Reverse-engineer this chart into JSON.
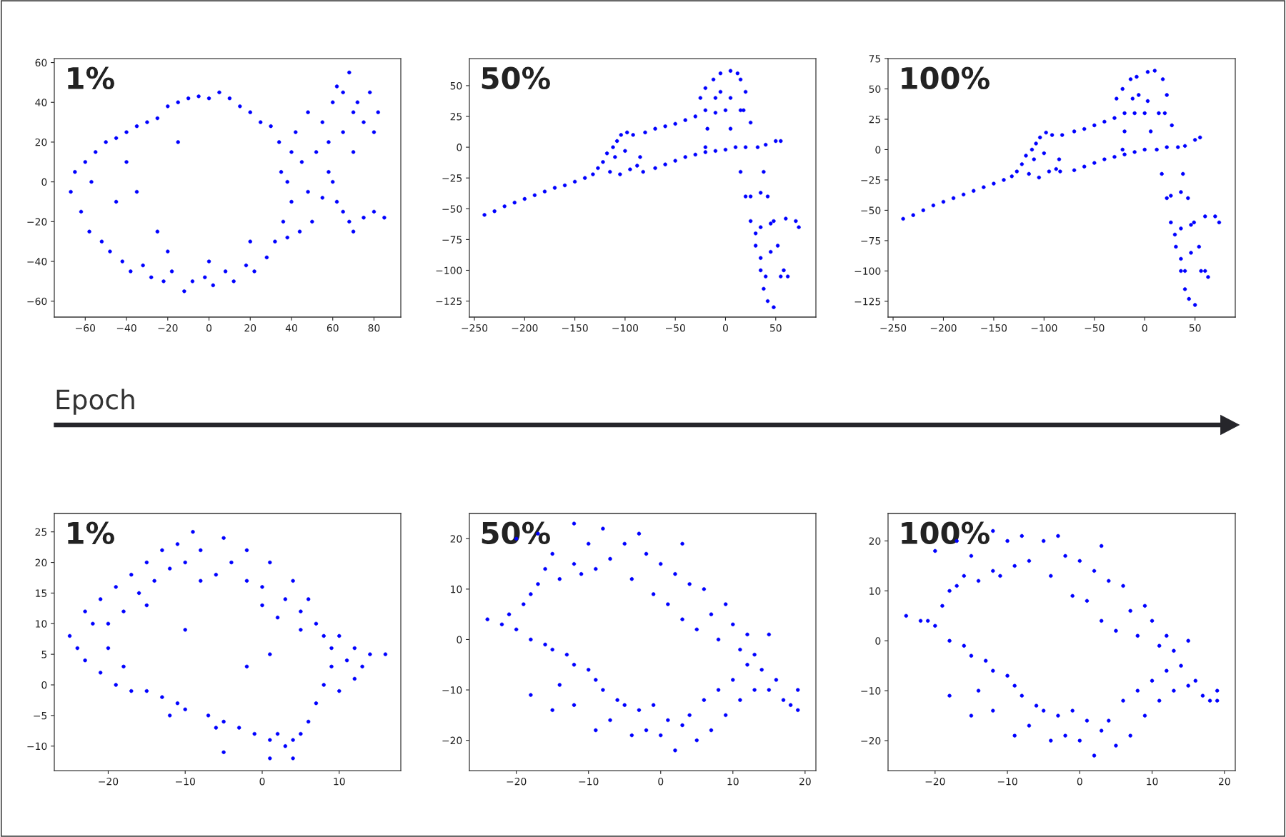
{
  "chart_data": [
    {
      "type": "scatter",
      "title": "1%",
      "annotations": [
        "Epoch"
      ],
      "marker": "circle",
      "grid": false,
      "xlim": [
        -75,
        93
      ],
      "ylim": [
        -68,
        62
      ],
      "xticks": [
        -60,
        -40,
        -20,
        0,
        20,
        40,
        60,
        80
      ],
      "yticks": [
        -60,
        -40,
        -20,
        0,
        20,
        40,
        60
      ],
      "series": [
        {
          "color": "#0000ff",
          "x": [
            -67,
            -65,
            -62,
            -60,
            -58,
            -57,
            -55,
            -52,
            -50,
            -48,
            -45,
            -42,
            -40,
            -38,
            -35,
            -32,
            -30,
            -28,
            -25,
            -22,
            -20,
            -18,
            -15,
            -12,
            -10,
            -8,
            -5,
            -2,
            0,
            2,
            5,
            8,
            10,
            12,
            15,
            18,
            20,
            22,
            25,
            28,
            30,
            32,
            34,
            35,
            36,
            38,
            38,
            40,
            40,
            42,
            44,
            45,
            48,
            48,
            50,
            52,
            55,
            58,
            60,
            62,
            65,
            68,
            70,
            75,
            80,
            85,
            60,
            62,
            65,
            68,
            70,
            72,
            75,
            78,
            80,
            82,
            55,
            58,
            65,
            70,
            -40,
            -35,
            -25,
            -15,
            -45,
            -20,
            0,
            20
          ],
          "values": [
            -5,
            5,
            -15,
            10,
            -25,
            0,
            15,
            -30,
            20,
            -35,
            22,
            -40,
            25,
            -45,
            28,
            -42,
            30,
            -48,
            32,
            -50,
            38,
            -45,
            40,
            -55,
            42,
            -50,
            43,
            -48,
            42,
            -52,
            45,
            -45,
            42,
            -50,
            38,
            -42,
            35,
            -45,
            30,
            -38,
            28,
            -30,
            20,
            5,
            -20,
            0,
            -28,
            15,
            -10,
            25,
            -25,
            10,
            35,
            -5,
            -20,
            15,
            -8,
            5,
            0,
            -10,
            -15,
            -20,
            -25,
            -18,
            -15,
            -18,
            40,
            48,
            45,
            55,
            35,
            40,
            30,
            45,
            25,
            35,
            30,
            20,
            25,
            15,
            10,
            -5,
            -25,
            20,
            -10,
            -35,
            -40,
            -30
          ]
        }
      ]
    },
    {
      "type": "scatter",
      "title": "50%",
      "marker": "circle",
      "grid": false,
      "xlim": [
        -255,
        90
      ],
      "ylim": [
        -138,
        72
      ],
      "xticks": [
        -250,
        -200,
        -150,
        -100,
        -50,
        0,
        50
      ],
      "yticks": [
        -125,
        -100,
        -75,
        -50,
        -25,
        0,
        25,
        50
      ],
      "series": [
        {
          "color": "#0000ff",
          "x": [
            -240,
            -230,
            -220,
            -210,
            -200,
            -190,
            -180,
            -170,
            -160,
            -150,
            -140,
            -132,
            -127,
            -122,
            -118,
            -112,
            -108,
            -104,
            -98,
            -92,
            -115,
            -105,
            -95,
            -88,
            -110,
            -100,
            -85,
            -82,
            -80,
            -70,
            -60,
            -50,
            -40,
            -30,
            -20,
            -10,
            -70,
            -60,
            -50,
            -40,
            -30,
            -20,
            -10,
            0,
            -20,
            -18,
            -25,
            -20,
            -12,
            -5,
            5,
            12,
            15,
            -10,
            5,
            15,
            20,
            -5,
            0,
            5,
            10,
            15,
            20,
            25,
            30,
            35,
            38,
            42,
            48,
            18,
            25,
            32,
            38,
            42,
            48,
            52,
            58,
            62,
            20,
            40,
            50,
            55,
            25,
            35,
            35,
            45,
            60,
            70,
            73,
            40,
            55,
            35,
            30,
            45
          ],
          "values": [
            -55,
            -52,
            -48,
            -45,
            -42,
            -39,
            -36,
            -33,
            -31,
            -28,
            -25,
            -22,
            -17,
            -12,
            -5,
            0,
            5,
            10,
            12,
            10,
            -20,
            -22,
            -18,
            -15,
            -8,
            -3,
            -8,
            -20,
            12,
            15,
            17,
            19,
            22,
            25,
            30,
            28,
            -17,
            -14,
            -11,
            -8,
            -6,
            -4,
            -3,
            -2,
            0,
            15,
            40,
            48,
            55,
            60,
            62,
            60,
            55,
            40,
            40,
            30,
            45,
            45,
            30,
            15,
            0,
            -20,
            -40,
            -60,
            -80,
            -100,
            -115,
            -125,
            -130,
            30,
            20,
            0,
            -20,
            -40,
            -60,
            -80,
            -100,
            -105,
            0,
            2,
            5,
            5,
            -40,
            -37,
            -65,
            -62,
            -58,
            -60,
            -65,
            -105,
            -105,
            -90,
            -70,
            -85
          ]
        }
      ]
    },
    {
      "type": "scatter",
      "title": "100%",
      "marker": "circle",
      "grid": false,
      "xlim": [
        -255,
        90
      ],
      "ylim": [
        -138,
        75
      ],
      "xticks": [
        -250,
        -200,
        -150,
        -100,
        -50,
        0,
        50
      ],
      "yticks": [
        -125,
        -100,
        -75,
        -50,
        -25,
        0,
        25,
        50,
        75
      ],
      "series": [
        {
          "color": "#0000ff",
          "x": [
            -240,
            -230,
            -220,
            -210,
            -200,
            -190,
            -180,
            -170,
            -160,
            -150,
            -140,
            -132,
            -127,
            -122,
            -118,
            -112,
            -108,
            -104,
            -98,
            -92,
            -115,
            -105,
            -95,
            -88,
            -110,
            -100,
            -85,
            -84,
            -82,
            -70,
            -60,
            -50,
            -40,
            -30,
            -20,
            -10,
            -70,
            -60,
            -50,
            -40,
            -30,
            -20,
            -10,
            0,
            -22,
            -20,
            -28,
            -22,
            -14,
            -8,
            3,
            10,
            18,
            -12,
            3,
            14,
            22,
            -6,
            0,
            6,
            12,
            17,
            22,
            26,
            31,
            36,
            40,
            44,
            50,
            20,
            27,
            33,
            38,
            43,
            49,
            54,
            60,
            63,
            22,
            40,
            50,
            55,
            26,
            36,
            36,
            46,
            60,
            70,
            74,
            40,
            56,
            36,
            30,
            46
          ],
          "values": [
            -57,
            -54,
            -50,
            -46,
            -43,
            -40,
            -37,
            -34,
            -31,
            -28,
            -25,
            -22,
            -18,
            -12,
            -5,
            0,
            5,
            10,
            14,
            12,
            -20,
            -23,
            -18,
            -16,
            -8,
            -3,
            -8,
            -18,
            12,
            15,
            17,
            20,
            23,
            26,
            30,
            30,
            -17,
            -14,
            -11,
            -8,
            -6,
            -4,
            -2,
            0,
            0,
            15,
            42,
            50,
            58,
            60,
            64,
            65,
            58,
            42,
            40,
            30,
            45,
            45,
            30,
            15,
            0,
            -20,
            -40,
            -60,
            -80,
            -100,
            -115,
            -123,
            -128,
            30,
            20,
            2,
            -20,
            -40,
            -60,
            -80,
            -100,
            -105,
            2,
            3,
            8,
            10,
            -38,
            -35,
            -65,
            -62,
            -55,
            -55,
            -60,
            -100,
            -100,
            -90,
            -70,
            -85
          ]
        }
      ]
    },
    {
      "type": "scatter",
      "title": "1%",
      "marker": "circle",
      "grid": false,
      "xlim": [
        -27,
        18
      ],
      "ylim": [
        -14,
        28
      ],
      "xticks": [
        -20,
        -10,
        0,
        10
      ],
      "yticks": [
        -10,
        -5,
        0,
        5,
        10,
        15,
        20,
        25
      ],
      "series": [
        {
          "color": "#0000ff",
          "x": [
            -25,
            -24,
            -23,
            -23,
            -22,
            -21,
            -21,
            -20,
            -19,
            -19,
            -18,
            -17,
            -17,
            -16,
            -15,
            -15,
            -14,
            -13,
            -13,
            -12,
            -11,
            -11,
            -10,
            -9,
            -10,
            -8,
            -7,
            -6,
            -5,
            -5,
            -4,
            -3,
            -2,
            -2,
            -1,
            0,
            1,
            1,
            2,
            3,
            3,
            4,
            4,
            5,
            5,
            6,
            6,
            7,
            7,
            8,
            8,
            9,
            9,
            10,
            10,
            11,
            12,
            12,
            13,
            14,
            16,
            -15,
            -20,
            -8,
            0,
            5,
            2,
            -12,
            -6,
            -18,
            -10,
            -2,
            1,
            4,
            -5,
            1
          ],
          "values": [
            8,
            6,
            12,
            4,
            10,
            14,
            2,
            6,
            16,
            0,
            12,
            18,
            -1,
            15,
            20,
            -1,
            17,
            22,
            -2,
            19,
            23,
            -3,
            20,
            25,
            -4,
            22,
            -5,
            18,
            24,
            -6,
            20,
            -7,
            22,
            17,
            -8,
            16,
            -9,
            20,
            -8,
            14,
            -10,
            17,
            -9,
            12,
            -8,
            14,
            -6,
            10,
            -3,
            8,
            0,
            6,
            3,
            8,
            -1,
            4,
            6,
            1,
            3,
            5,
            5,
            13,
            10,
            17,
            13,
            9,
            11,
            -5,
            -7,
            3,
            9,
            3,
            5,
            -12,
            -11,
            -12
          ]
        }
      ]
    },
    {
      "type": "scatter",
      "title": "50%",
      "marker": "circle",
      "grid": false,
      "xlim": [
        -26.5,
        21.5
      ],
      "ylim": [
        -26,
        25
      ],
      "xticks": [
        -20,
        -10,
        0,
        10,
        20
      ],
      "yticks": [
        -20,
        -10,
        0,
        10,
        20
      ],
      "series": [
        {
          "color": "#0000ff",
          "x": [
            -24,
            -22,
            -21,
            -20,
            -19,
            -18,
            -18,
            -17,
            -16,
            -16,
            -15,
            -15,
            -14,
            -13,
            -12,
            -12,
            -11,
            -10,
            -10,
            -9,
            -9,
            -8,
            -8,
            -7,
            -7,
            -6,
            -5,
            -5,
            -4,
            -4,
            -3,
            -2,
            -2,
            -1,
            -1,
            0,
            0,
            1,
            1,
            2,
            2,
            3,
            3,
            4,
            4,
            5,
            5,
            6,
            6,
            7,
            7,
            8,
            8,
            9,
            9,
            10,
            10,
            11,
            11,
            12,
            12,
            13,
            13,
            14,
            15,
            15,
            16,
            17,
            18,
            19,
            19,
            -14,
            -12,
            -9,
            -18,
            -15,
            -20,
            -17,
            -12,
            -3,
            3
          ],
          "values": [
            4,
            3,
            5,
            2,
            7,
            9,
            0,
            11,
            -1,
            14,
            17,
            -2,
            12,
            -3,
            15,
            -5,
            13,
            -6,
            19,
            14,
            -8,
            22,
            -10,
            16,
            -16,
            -12,
            19,
            -13,
            12,
            -19,
            -14,
            17,
            -18,
            9,
            -13,
            15,
            -19,
            7,
            -16,
            13,
            -22,
            4,
            -17,
            11,
            -15,
            2,
            -20,
            10,
            -12,
            5,
            -18,
            0,
            -10,
            7,
            -15,
            3,
            -8,
            -2,
            -12,
            1,
            -5,
            -3,
            -10,
            -6,
            1,
            -10,
            -8,
            -12,
            -13,
            -10,
            -14,
            -9,
            -13,
            -18,
            -11,
            -14,
            20,
            21,
            23,
            21,
            19
          ]
        }
      ]
    },
    {
      "type": "scatter",
      "title": "100%",
      "marker": "circle",
      "grid": false,
      "xlim": [
        -26.5,
        21.5
      ],
      "ylim": [
        -26,
        25.5
      ],
      "xticks": [
        -20,
        -10,
        0,
        10,
        20
      ],
      "yticks": [
        -20,
        -10,
        0,
        10,
        20
      ],
      "series": [
        {
          "color": "#0000ff",
          "x": [
            -24,
            -22,
            -21,
            -20,
            -19,
            -18,
            -18,
            -17,
            -16,
            -16,
            -15,
            -15,
            -14,
            -13,
            -12,
            -12,
            -11,
            -10,
            -10,
            -9,
            -9,
            -8,
            -8,
            -7,
            -7,
            -6,
            -5,
            -5,
            -4,
            -4,
            -3,
            -2,
            -2,
            -1,
            -1,
            0,
            0,
            1,
            1,
            2,
            2,
            3,
            3,
            4,
            4,
            5,
            5,
            6,
            6,
            7,
            7,
            8,
            8,
            9,
            9,
            10,
            10,
            11,
            11,
            12,
            12,
            13,
            13,
            14,
            15,
            15,
            16,
            17,
            18,
            19,
            19,
            -14,
            -12,
            -9,
            -18,
            -15,
            -20,
            -17,
            -12,
            -3,
            3
          ],
          "values": [
            5,
            4,
            4,
            3,
            7,
            10,
            0,
            11,
            -1,
            13,
            17,
            -3,
            12,
            -4,
            14,
            -6,
            13,
            -7,
            20,
            15,
            -9,
            21,
            -11,
            16,
            -17,
            -13,
            20,
            -14,
            13,
            -20,
            -15,
            17,
            -19,
            9,
            -14,
            16,
            -20,
            8,
            -16,
            14,
            -23,
            4,
            -18,
            12,
            -16,
            2,
            -21,
            11,
            -12,
            6,
            -19,
            1,
            -10,
            7,
            -15,
            4,
            -8,
            -1,
            -12,
            1,
            -6,
            -2,
            -10,
            -5,
            0,
            -9,
            -8,
            -11,
            -12,
            -10,
            -12,
            -10,
            -14,
            -19,
            -11,
            -15,
            18,
            20,
            22,
            21,
            19
          ]
        }
      ]
    }
  ]
}
